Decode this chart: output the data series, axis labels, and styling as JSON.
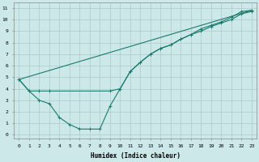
{
  "xlabel": "Humidex (Indice chaleur)",
  "bg_color": "#cce8e8",
  "line_color": "#1a7a6e",
  "grid_color": "#aacccc",
  "xlim": [
    -0.5,
    23.5
  ],
  "ylim": [
    -0.3,
    11.5
  ],
  "xticks": [
    0,
    1,
    2,
    3,
    4,
    5,
    6,
    7,
    8,
    9,
    10,
    11,
    12,
    13,
    14,
    15,
    16,
    17,
    18,
    19,
    20,
    21,
    22,
    23
  ],
  "yticks": [
    0,
    1,
    2,
    3,
    4,
    5,
    6,
    7,
    8,
    9,
    10,
    11
  ],
  "series1_x": [
    0,
    1,
    2,
    3,
    4,
    5,
    6,
    7,
    8,
    9,
    10,
    11,
    12,
    13,
    14,
    15,
    16,
    17,
    18,
    19,
    20,
    21,
    22,
    23
  ],
  "series1_y": [
    4.8,
    3.8,
    3.0,
    2.7,
    1.5,
    0.9,
    0.5,
    0.5,
    0.5,
    2.5,
    4.0,
    5.5,
    6.3,
    7.0,
    7.5,
    7.8,
    8.3,
    8.7,
    9.2,
    9.5,
    9.8,
    10.2,
    10.7,
    10.8
  ],
  "series2_x": [
    0,
    1,
    2,
    3,
    9,
    10,
    11,
    12,
    13,
    14,
    15,
    16,
    17,
    18,
    19,
    20,
    21,
    22,
    23
  ],
  "series2_y": [
    4.8,
    3.8,
    3.8,
    3.8,
    3.8,
    4.0,
    5.5,
    6.3,
    7.0,
    7.5,
    7.8,
    8.3,
    8.7,
    9.0,
    9.4,
    9.7,
    10.0,
    10.5,
    10.7
  ],
  "series3_x": [
    0,
    23
  ],
  "series3_y": [
    4.8,
    10.8
  ],
  "marker_size": 2.5,
  "linewidth": 0.8,
  "font_family": "monospace",
  "tick_fontsize": 4.5,
  "xlabel_fontsize": 5.5
}
